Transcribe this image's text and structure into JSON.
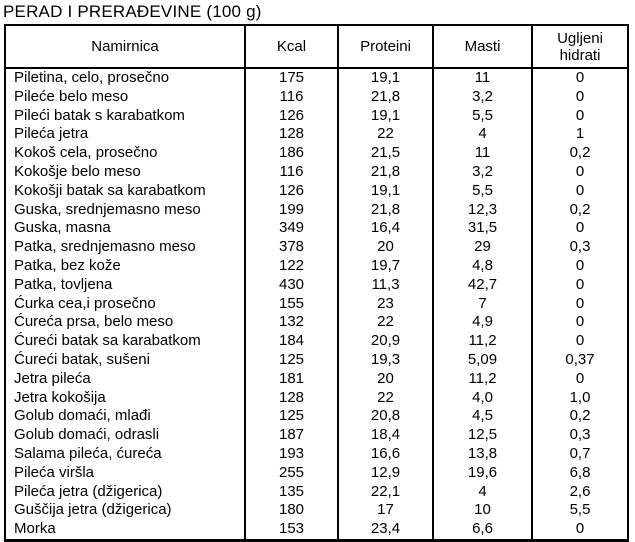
{
  "page_title": "PERAD I PRERAĐEVINE (100 g)",
  "table": {
    "columns": [
      "Namirnica",
      "Kcal",
      "Proteini",
      "Masti",
      "Ugljeni hidrati"
    ],
    "rows": [
      [
        "Piletina, celo, prosečno",
        "175",
        "19,1",
        "11",
        "0"
      ],
      [
        "Pileće belo meso",
        "116",
        "21,8",
        "3,2",
        "0"
      ],
      [
        "Pileći batak s karabatkom",
        "126",
        "19,1",
        "5,5",
        "0"
      ],
      [
        "Pileća jetra",
        "128",
        "22",
        "4",
        "1"
      ],
      [
        "Kokoš cela, prosečno",
        "186",
        "21,5",
        "11",
        "0,2"
      ],
      [
        "Kokošje belo meso",
        "116",
        "21,8",
        "3,2",
        "0"
      ],
      [
        "Kokošji batak sa karabatkom",
        "126",
        "19,1",
        "5,5",
        "0"
      ],
      [
        "Guska, srednjemasno meso",
        "199",
        "21,8",
        "12,3",
        "0,2"
      ],
      [
        "Guska, masna",
        "349",
        "16,4",
        "31,5",
        "0"
      ],
      [
        "Patka, srednjemasno meso",
        "378",
        "20",
        "29",
        "0,3"
      ],
      [
        "Patka, bez kože",
        "122",
        "19,7",
        "4,8",
        "0"
      ],
      [
        "Patka, tovljena",
        "430",
        "11,3",
        "42,7",
        "0"
      ],
      [
        "Ćurka cea,i prosečno",
        "155",
        "23",
        "7",
        "0"
      ],
      [
        "Ćureća prsa, belo meso",
        "132",
        "22",
        "4,9",
        "0"
      ],
      [
        "Ćureći batak sa karabatkom",
        "184",
        "20,9",
        "11,2",
        "0"
      ],
      [
        "Ćureći batak, sušeni",
        "125",
        "19,3",
        "5,09",
        "0,37"
      ],
      [
        "Jetra pileća",
        "181",
        "20",
        "11,2",
        "0"
      ],
      [
        "Jetra kokošija",
        "128",
        "22",
        "4,0",
        "1,0"
      ],
      [
        "Golub domaći, mlađi",
        "125",
        "20,8",
        "4,5",
        "0,2"
      ],
      [
        "Golub domaći, odrasli",
        "187",
        "18,4",
        "12,5",
        "0,3"
      ],
      [
        "Salama pileća, ćureća",
        "193",
        "16,6",
        "13,8",
        "0,7"
      ],
      [
        "Pileća viršla",
        "255",
        "12,9",
        "19,6",
        "6,8"
      ],
      [
        "Pileća jetra (džigerica)",
        "135",
        "22,1",
        "4",
        "2,6"
      ],
      [
        "Guščija jetra (džigerica)",
        "180",
        "17",
        "10",
        "5,5"
      ],
      [
        "Morka",
        "153",
        "23,4",
        "6,6",
        "0"
      ]
    ]
  },
  "colors": {
    "text": "#000000",
    "border": "#000000",
    "background": "#ffffff"
  }
}
